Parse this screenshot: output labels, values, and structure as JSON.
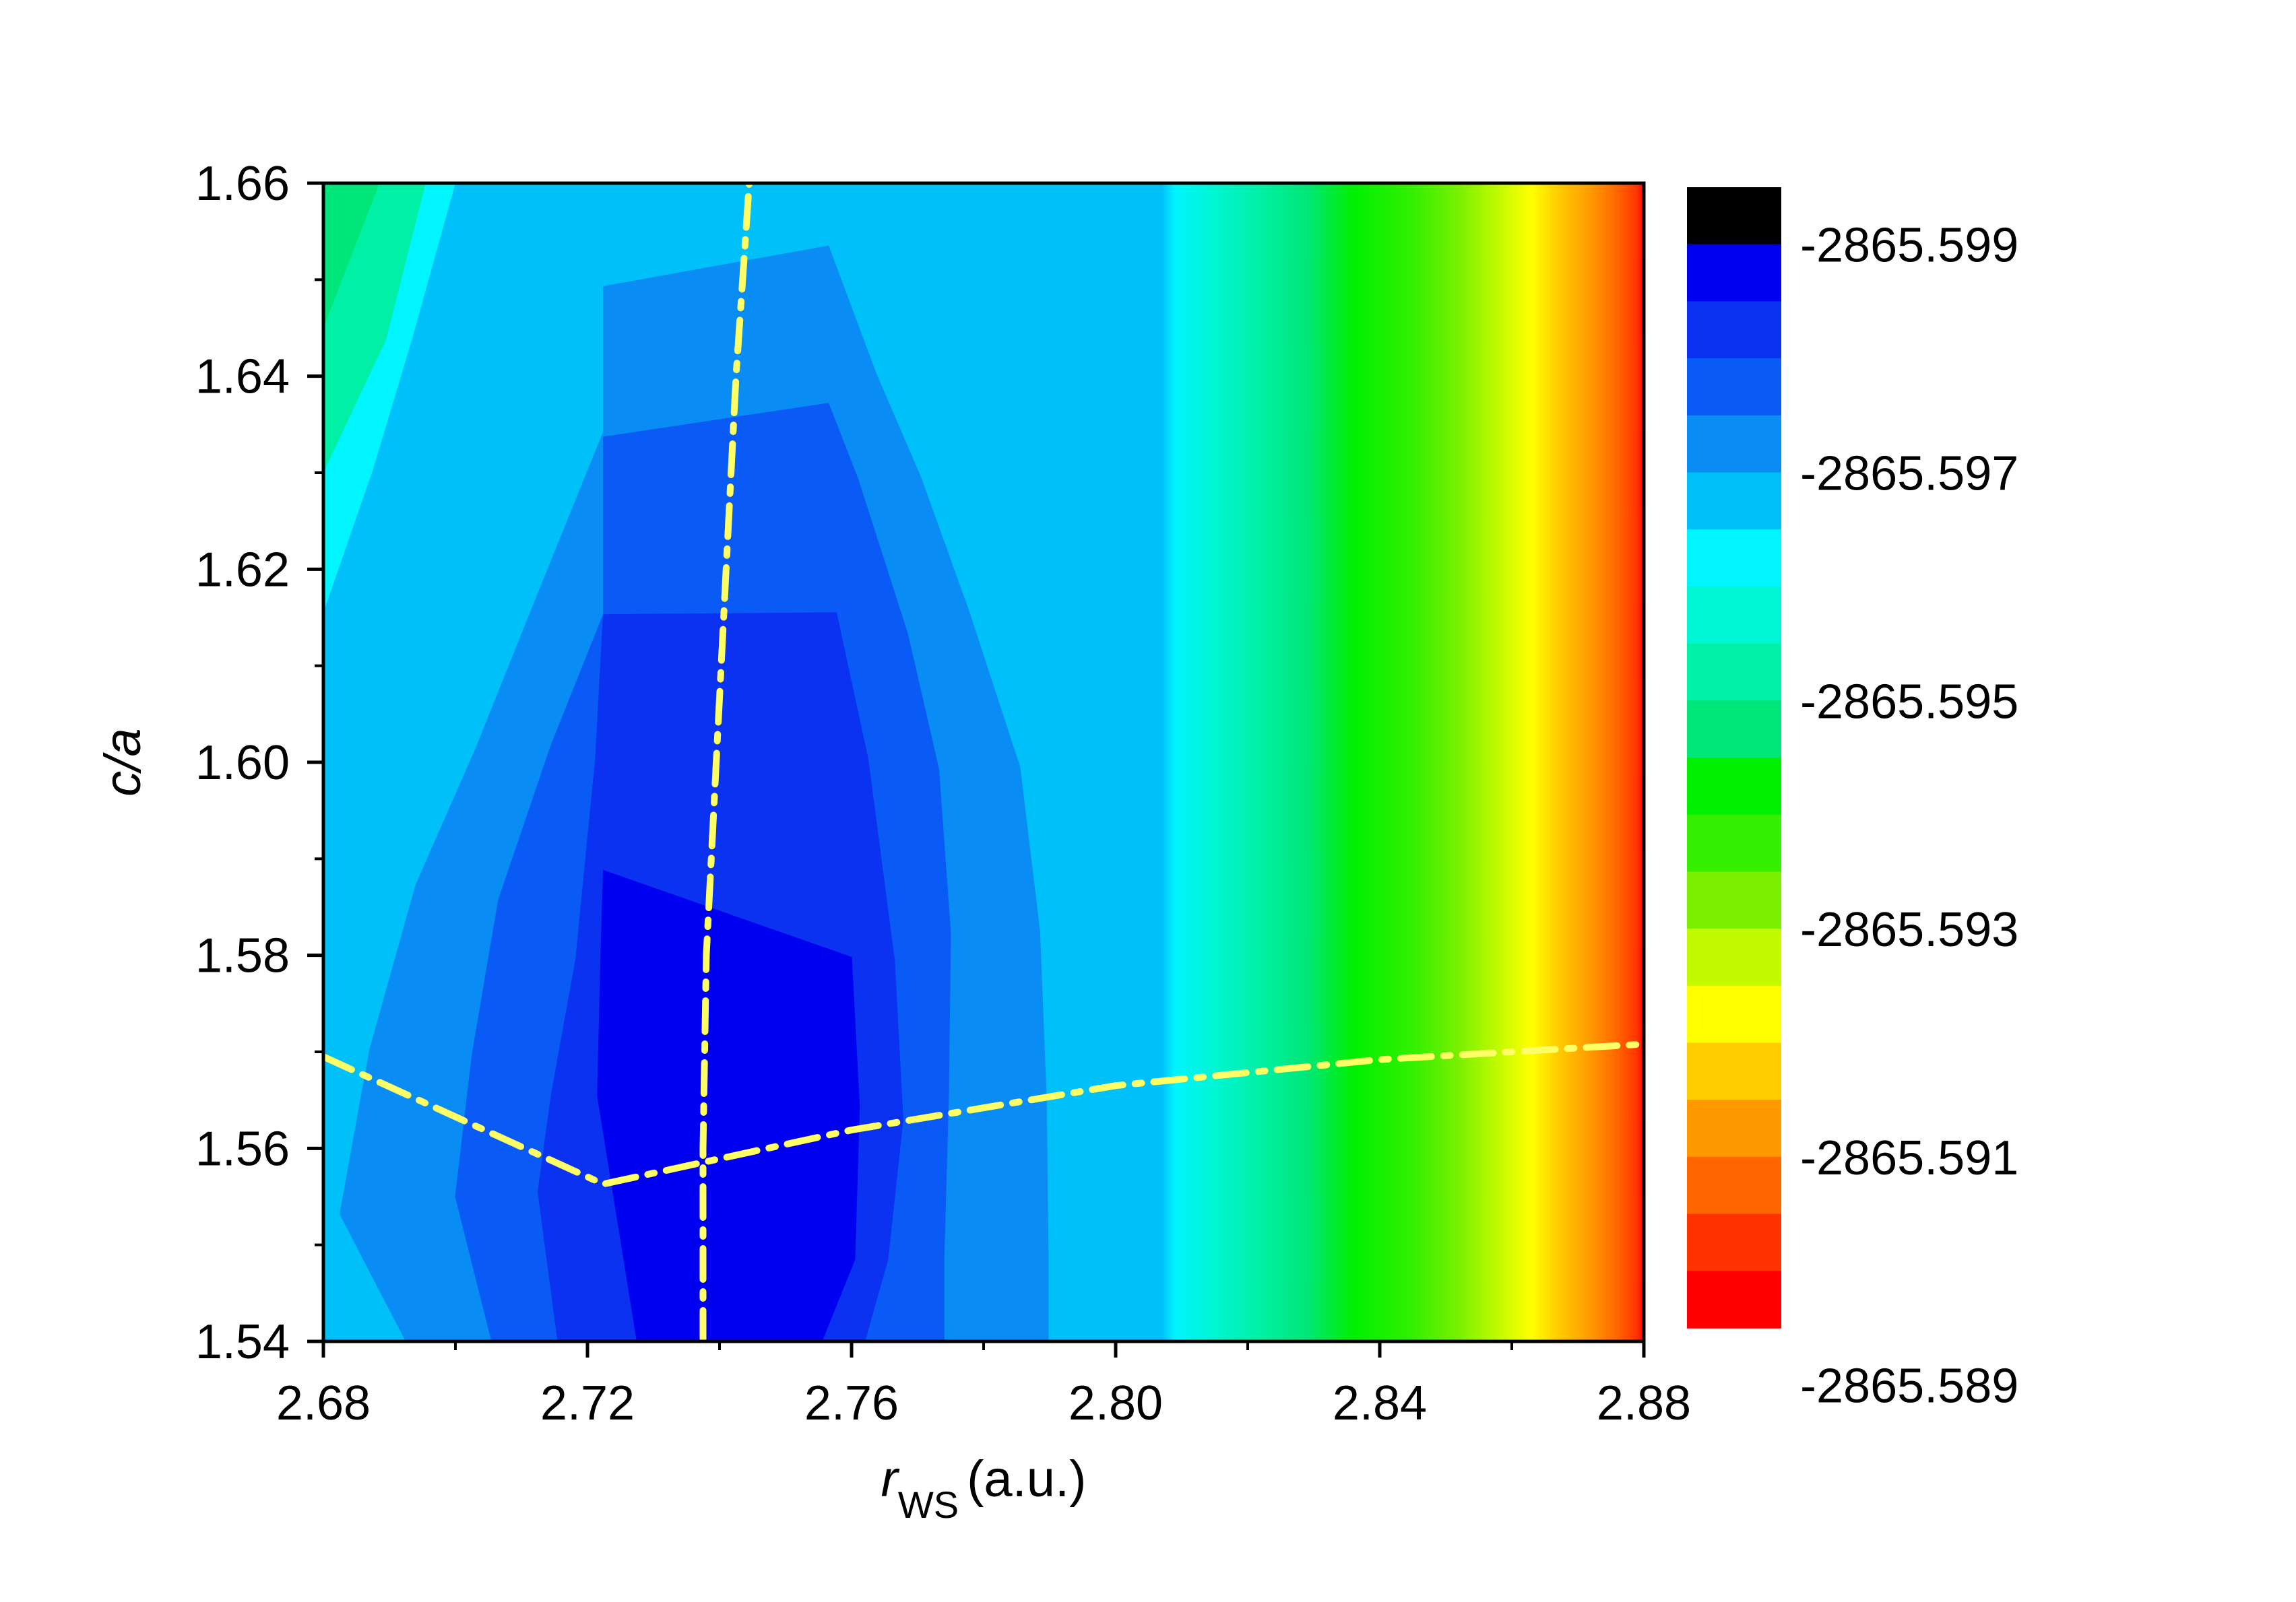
{
  "chart_data": {
    "type": "heatmap",
    "subtype": "filled-contour",
    "title": "",
    "xlabel": {
      "symbol": "r",
      "subscript": "WS",
      "unit": "(a.u.)"
    },
    "ylabel": {
      "pre": "c/",
      "symbol": "a"
    },
    "xlim": [
      2.68,
      2.88
    ],
    "ylim": [
      1.54,
      1.66
    ],
    "x_ticks": [
      "2.68",
      "2.72",
      "2.76",
      "2.80",
      "2.84",
      "2.88"
    ],
    "y_ticks": [
      "1.54",
      "1.56",
      "1.58",
      "1.60",
      "1.62",
      "1.64",
      "1.66"
    ],
    "colorbar": {
      "placement": "right",
      "min": -2865.5895,
      "max": -2865.5995,
      "labels": [
        "-2865.599",
        "-2865.597",
        "-2865.595",
        "-2865.593",
        "-2865.591",
        "-2865.589"
      ],
      "colors": [
        "#000000",
        "#0000F0",
        "#0A32F0",
        "#0A5AF5",
        "#0A8CF5",
        "#00C0FA",
        "#00F5FF",
        "#00F5D2",
        "#00F0A5",
        "#00E678",
        "#00F000",
        "#32F000",
        "#7AF000",
        "#C3FA00",
        "#FFFF00",
        "#FFCC00",
        "#FF9900",
        "#FF6600",
        "#FF3300",
        "#FF0000"
      ]
    },
    "contour_regions": [
      {
        "color": "#00C0FA",
        "points": [
          [
            2.683,
            1.54
          ],
          [
            2.68,
            1.5425
          ],
          [
            2.68,
            1.5845
          ],
          [
            2.6875,
            1.6013
          ],
          [
            2.696,
            1.6183
          ],
          [
            2.7055,
            1.634
          ],
          [
            2.7165,
            1.6492
          ],
          [
            2.721,
            1.66
          ],
          [
            2.7775,
            1.66
          ],
          [
            2.782,
            1.6508
          ],
          [
            2.7905,
            1.634
          ],
          [
            2.7965,
            1.6175
          ],
          [
            2.801,
            1.6003
          ],
          [
            2.8035,
            1.5835
          ],
          [
            2.8055,
            1.5663
          ],
          [
            2.8067,
            1.5493
          ],
          [
            2.807,
            1.54
          ]
        ]
      },
      {
        "color": "#0A8CF5",
        "points": [
          [
            2.6925,
            1.54
          ],
          [
            2.6825,
            1.5532
          ],
          [
            2.687,
            1.5702
          ],
          [
            2.694,
            1.5873
          ],
          [
            2.703,
            1.6013
          ],
          [
            2.7125,
            1.6175
          ],
          [
            2.7224,
            1.6342
          ],
          [
            2.7224,
            1.6493
          ],
          [
            2.7565,
            1.6535
          ],
          [
            2.7637,
            1.6403
          ],
          [
            2.7705,
            1.6295
          ],
          [
            2.7777,
            1.6158
          ],
          [
            2.7855,
            1.5995
          ],
          [
            2.7885,
            1.5825
          ],
          [
            2.7895,
            1.5653
          ],
          [
            2.7898,
            1.5487
          ],
          [
            2.7898,
            1.54
          ]
        ]
      },
      {
        "color": "#0A5AF5",
        "points": [
          [
            2.7055,
            1.54
          ],
          [
            2.7,
            1.555
          ],
          [
            2.7025,
            1.5696
          ],
          [
            2.7065,
            1.5857
          ],
          [
            2.7145,
            1.6018
          ],
          [
            2.7224,
            1.6153
          ],
          [
            2.7224,
            1.6337
          ],
          [
            2.7565,
            1.6372
          ],
          [
            2.761,
            1.6293
          ],
          [
            2.7685,
            1.6133
          ],
          [
            2.7732,
            1.5993
          ],
          [
            2.775,
            1.5823
          ],
          [
            2.7747,
            1.5658
          ],
          [
            2.774,
            1.5485
          ],
          [
            2.774,
            1.54
          ]
        ]
      },
      {
        "color": "#0A32F0",
        "points": [
          [
            2.7155,
            1.54
          ],
          [
            2.7125,
            1.5555
          ],
          [
            2.7145,
            1.5655
          ],
          [
            2.7182,
            1.5795
          ],
          [
            2.7212,
            1.6003
          ],
          [
            2.7224,
            1.6153
          ],
          [
            2.7577,
            1.6155
          ],
          [
            2.7625,
            1.6003
          ],
          [
            2.7665,
            1.5795
          ],
          [
            2.7678,
            1.563
          ],
          [
            2.7655,
            1.5485
          ],
          [
            2.762,
            1.54
          ]
        ]
      },
      {
        "color": "#0000F0",
        "points": [
          [
            2.7275,
            1.54
          ],
          [
            2.7215,
            1.5655
          ],
          [
            2.722,
            1.5793
          ],
          [
            2.7224,
            1.5888
          ],
          [
            2.76,
            1.5798
          ],
          [
            2.7612,
            1.5643
          ],
          [
            2.7605,
            1.5485
          ],
          [
            2.7555,
            1.54
          ]
        ]
      }
    ],
    "ridge_lines": [
      {
        "color": "#FFFF66",
        "style": "dash-dot",
        "points": [
          [
            2.68,
            1.5695
          ],
          [
            2.7224,
            1.5563
          ],
          [
            2.76,
            1.5619
          ],
          [
            2.8,
            1.5665
          ],
          [
            2.84,
            1.5692
          ],
          [
            2.88,
            1.5708
          ]
        ]
      },
      {
        "color": "#FFFF66",
        "style": "dash-dot",
        "points": [
          [
            2.7375,
            1.54
          ],
          [
            2.7375,
            1.56
          ],
          [
            2.738,
            1.58
          ],
          [
            2.7395,
            1.6
          ],
          [
            2.741,
            1.62
          ],
          [
            2.7425,
            1.64
          ],
          [
            2.7445,
            1.66
          ]
        ]
      }
    ]
  }
}
